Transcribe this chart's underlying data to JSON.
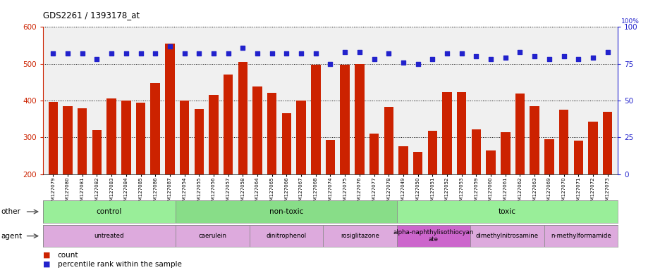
{
  "title": "GDS2261 / 1393178_at",
  "categories": [
    "GSM127079",
    "GSM127080",
    "GSM127081",
    "GSM127082",
    "GSM127083",
    "GSM127084",
    "GSM127085",
    "GSM127086",
    "GSM127087",
    "GSM127054",
    "GSM127055",
    "GSM127056",
    "GSM127057",
    "GSM127058",
    "GSM127064",
    "GSM127065",
    "GSM127066",
    "GSM127067",
    "GSM127068",
    "GSM127074",
    "GSM127075",
    "GSM127076",
    "GSM127077",
    "GSM127078",
    "GSM127049",
    "GSM127050",
    "GSM127051",
    "GSM127052",
    "GSM127053",
    "GSM127059",
    "GSM127060",
    "GSM127061",
    "GSM127062",
    "GSM127063",
    "GSM127069",
    "GSM127070",
    "GSM127071",
    "GSM127072",
    "GSM127073"
  ],
  "bar_values": [
    397,
    385,
    380,
    320,
    405,
    400,
    395,
    448,
    555,
    400,
    378,
    415,
    470,
    505,
    438,
    422,
    365,
    400,
    498,
    293,
    498,
    500,
    310,
    382,
    275,
    261,
    317,
    423,
    423,
    321,
    265,
    315,
    420,
    385,
    295,
    375,
    292,
    342,
    370
  ],
  "percentile_values": [
    82,
    82,
    82,
    78,
    82,
    82,
    82,
    82,
    87,
    82,
    82,
    82,
    82,
    86,
    82,
    82,
    82,
    82,
    82,
    75,
    83,
    83,
    78,
    82,
    76,
    75,
    78,
    82,
    82,
    80,
    78,
    79,
    83,
    80,
    78,
    80,
    78,
    79,
    83
  ],
  "bar_color": "#cc2200",
  "dot_color": "#2222cc",
  "ylim_left": [
    200,
    600
  ],
  "ylim_right": [
    0,
    100
  ],
  "yticks_left": [
    200,
    300,
    400,
    500,
    600
  ],
  "yticks_right": [
    0,
    25,
    50,
    75,
    100
  ],
  "other_groups": [
    {
      "label": "control",
      "start": 0,
      "end": 9,
      "color": "#99ee99"
    },
    {
      "label": "non-toxic",
      "start": 9,
      "end": 24,
      "color": "#88dd88"
    },
    {
      "label": "toxic",
      "start": 24,
      "end": 39,
      "color": "#99ee99"
    }
  ],
  "agent_groups": [
    {
      "label": "untreated",
      "start": 0,
      "end": 9,
      "color": "#ddaadd"
    },
    {
      "label": "caerulein",
      "start": 9,
      "end": 14,
      "color": "#ddaadd"
    },
    {
      "label": "dinitrophenol",
      "start": 14,
      "end": 19,
      "color": "#ddaadd"
    },
    {
      "label": "rosiglitazone",
      "start": 19,
      "end": 24,
      "color": "#ddaadd"
    },
    {
      "label": "alpha-naphthylisothiocyan\nate",
      "start": 24,
      "end": 29,
      "color": "#cc66cc"
    },
    {
      "label": "dimethylnitrosamine",
      "start": 29,
      "end": 34,
      "color": "#ddaadd"
    },
    {
      "label": "n-methylformamide",
      "start": 34,
      "end": 39,
      "color": "#ddaadd"
    }
  ],
  "other_label": "other",
  "agent_label": "agent",
  "legend_count": "count",
  "legend_percentile": "percentile rank within the sample",
  "bar_color_tick": "#cc2200",
  "dot_color_tick": "#2222cc",
  "chart_bg": "#f0f0f0",
  "panel_bg": "#d8d8d8"
}
